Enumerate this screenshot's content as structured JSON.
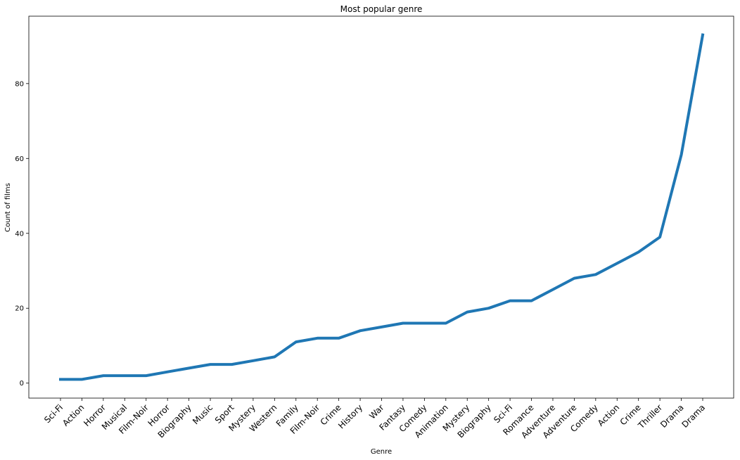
{
  "chart_data": {
    "type": "line",
    "title": "Most popular genre",
    "xlabel": "Genre",
    "ylabel": "Count of films",
    "ylim": [
      -4,
      98
    ],
    "yticks": [
      0,
      20,
      40,
      60,
      80
    ],
    "grid": false,
    "categories": [
      "Sci-Fi",
      "Action",
      "Horror",
      "Musical",
      "Film-Noir",
      "Horror",
      "Biography",
      "Music",
      "Sport",
      "Mystery",
      "Western",
      "Family",
      "Film-Noir",
      "Crime",
      "History",
      "War",
      "Fantasy",
      "Comedy",
      "Animation",
      "Mystery",
      "Biography",
      "Sci-Fi",
      "Romance",
      "Adventure",
      "Adventure",
      "Comedy",
      "Action",
      "Crime",
      "Thriller",
      "Drama",
      "Drama"
    ],
    "values": [
      1,
      1,
      2,
      2,
      2,
      3,
      4,
      5,
      5,
      6,
      7,
      11,
      12,
      12,
      14,
      15,
      16,
      16,
      16,
      19,
      20,
      22,
      22,
      25,
      28,
      29,
      32,
      35,
      39,
      61,
      93
    ],
    "line_color": "#1f77b4"
  }
}
